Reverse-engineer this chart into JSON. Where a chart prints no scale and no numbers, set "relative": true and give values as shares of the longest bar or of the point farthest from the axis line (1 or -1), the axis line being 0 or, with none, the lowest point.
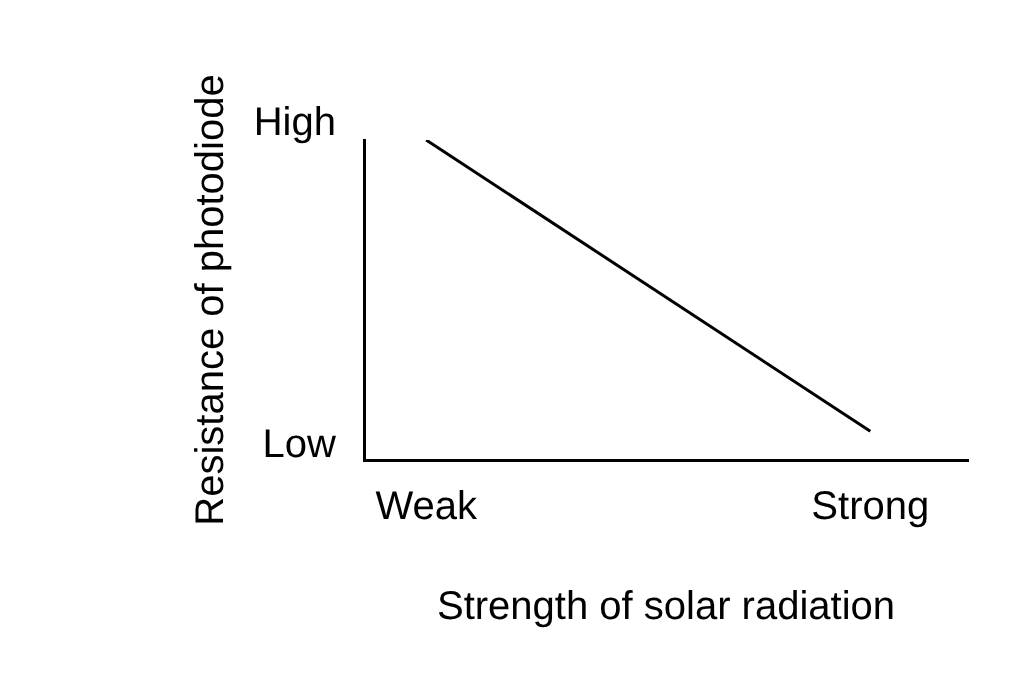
{
  "chart_data": {
    "type": "line",
    "xlabel": "Strength of solar radiation",
    "ylabel": "Resistance of photodiode",
    "categories": [
      "Weak",
      "Strong"
    ],
    "relative": true,
    "series": [
      {
        "color": "#000000",
        "values": [
          1,
          0.09
        ]
      }
    ],
    "annotations": [
      "High",
      "Low"
    ],
    "grid": false,
    "legend": false,
    "marker": "none",
    "line_style": "solid"
  }
}
